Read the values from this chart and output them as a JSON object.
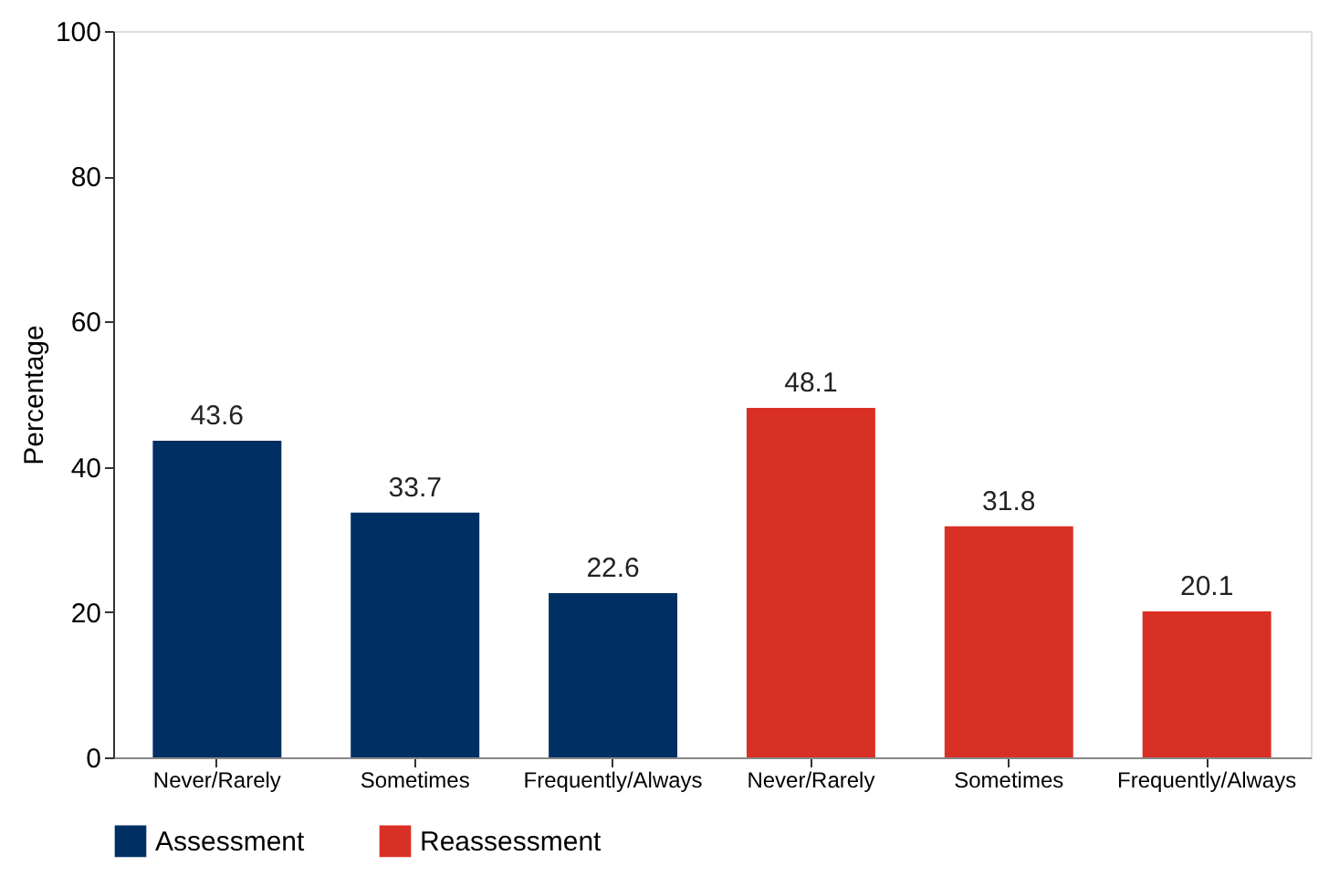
{
  "chart_data": {
    "type": "bar",
    "ylabel": "Percentage",
    "categories": [
      "Never/Rarely",
      "Sometimes",
      "Frequently/Always",
      "Never/Rarely",
      "Sometimes",
      "Frequently/Always"
    ],
    "series": [
      {
        "name": "Assessment",
        "color": "#003063",
        "values": [
          43.6,
          33.7,
          22.6,
          null,
          null,
          null
        ]
      },
      {
        "name": "Reassessment",
        "color": "#d93025",
        "values": [
          null,
          null,
          null,
          48.1,
          31.8,
          20.1
        ]
      }
    ],
    "ylim": [
      0,
      100
    ],
    "yticks": [
      0,
      20,
      40,
      60,
      80,
      100
    ],
    "grid": false,
    "legend": "bottom",
    "data_labels": true
  }
}
